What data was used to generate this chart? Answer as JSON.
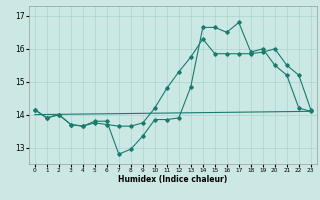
{
  "xlabel": "Humidex (Indice chaleur)",
  "bg_color": "#cce8e5",
  "grid_color": "#aad4d0",
  "line_color": "#1a7a6e",
  "xlim": [
    -0.5,
    23.5
  ],
  "ylim": [
    12.5,
    17.3
  ],
  "yticks": [
    13,
    14,
    15,
    16,
    17
  ],
  "xticks": [
    0,
    1,
    2,
    3,
    4,
    5,
    6,
    7,
    8,
    9,
    10,
    11,
    12,
    13,
    14,
    15,
    16,
    17,
    18,
    19,
    20,
    21,
    22,
    23
  ],
  "line1_x": [
    0,
    1,
    2,
    3,
    4,
    5,
    6,
    7,
    8,
    9,
    10,
    11,
    12,
    13,
    14,
    15,
    16,
    17,
    18,
    19,
    20,
    21,
    22,
    23
  ],
  "line1_y": [
    14.15,
    13.9,
    14.0,
    13.7,
    13.65,
    13.8,
    13.8,
    12.8,
    12.95,
    13.35,
    13.85,
    13.85,
    13.9,
    14.85,
    16.65,
    16.65,
    16.5,
    16.8,
    15.9,
    16.0,
    15.5,
    15.2,
    14.2,
    14.1
  ],
  "line2_x": [
    0,
    23
  ],
  "line2_y": [
    14.0,
    14.1
  ],
  "line3_x": [
    0,
    1,
    2,
    3,
    4,
    5,
    6,
    7,
    8,
    9,
    10,
    11,
    12,
    13,
    14,
    15,
    16,
    17,
    18,
    19,
    20,
    21,
    22,
    23
  ],
  "line3_y": [
    14.15,
    13.9,
    14.0,
    13.7,
    13.65,
    13.75,
    13.7,
    13.65,
    13.65,
    13.75,
    14.2,
    14.8,
    15.3,
    15.75,
    16.3,
    15.85,
    15.85,
    15.85,
    15.85,
    15.9,
    16.0,
    15.5,
    15.2,
    14.15
  ]
}
